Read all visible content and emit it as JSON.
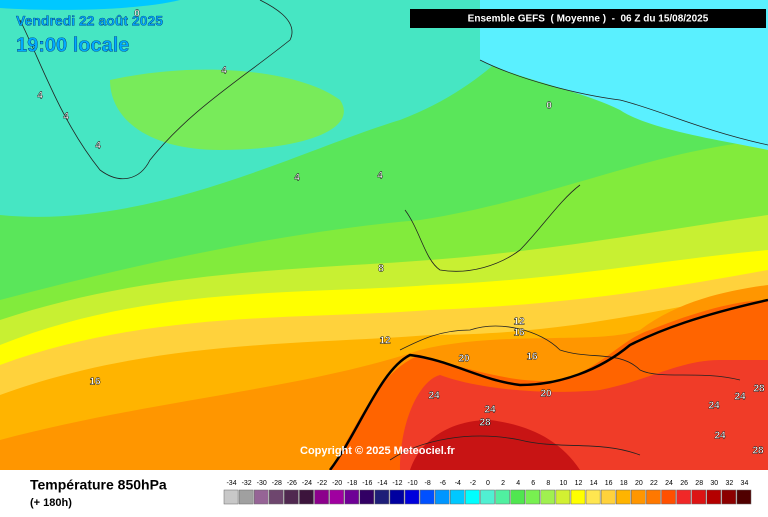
{
  "header": {
    "date": "Vendredi 22 août 2025",
    "time": "19:00 locale",
    "model": "Ensemble GEFS  ( Moyenne )  -  06 Z du 15/08/2025"
  },
  "copyright": "Copyright © 2025 Meteociel.fr",
  "footer": {
    "title": "Température 850hPa",
    "subtitle": "(+ 180h)"
  },
  "contour_labels": [
    "0",
    "4",
    "4",
    "4",
    "4",
    "4",
    "4",
    "0",
    "8",
    "12",
    "12",
    "16",
    "16",
    "16",
    "20",
    "20",
    "24",
    "24",
    "24",
    "24",
    "24",
    "28",
    "28",
    "28"
  ],
  "legend": {
    "values": [
      -34,
      -32,
      -30,
      -28,
      -26,
      -24,
      -22,
      -20,
      -18,
      -16,
      -14,
      -12,
      -10,
      -8,
      -6,
      -4,
      -2,
      0,
      2,
      4,
      6,
      8,
      10,
      12,
      14,
      16,
      18,
      20,
      22,
      24,
      26,
      28,
      30,
      32,
      34
    ],
    "colors": [
      "#c8c8c8",
      "#a0a0a0",
      "#966496",
      "#6e466e",
      "#502850",
      "#3c143c",
      "#8c008c",
      "#a000a0",
      "#6e0096",
      "#320064",
      "#1e1e78",
      "#0000a0",
      "#0000dc",
      "#0050ff",
      "#0096ff",
      "#00c8ff",
      "#00ffff",
      "#50f0d2",
      "#50f0a0",
      "#50e650",
      "#78f050",
      "#a0f050",
      "#d2f032",
      "#ffff00",
      "#ffe650",
      "#ffd23c",
      "#ffb400",
      "#ff9600",
      "#ff7800",
      "#ff5000",
      "#f02828",
      "#dc1414",
      "#b40000",
      "#8c0000",
      "#500000"
    ]
  }
}
